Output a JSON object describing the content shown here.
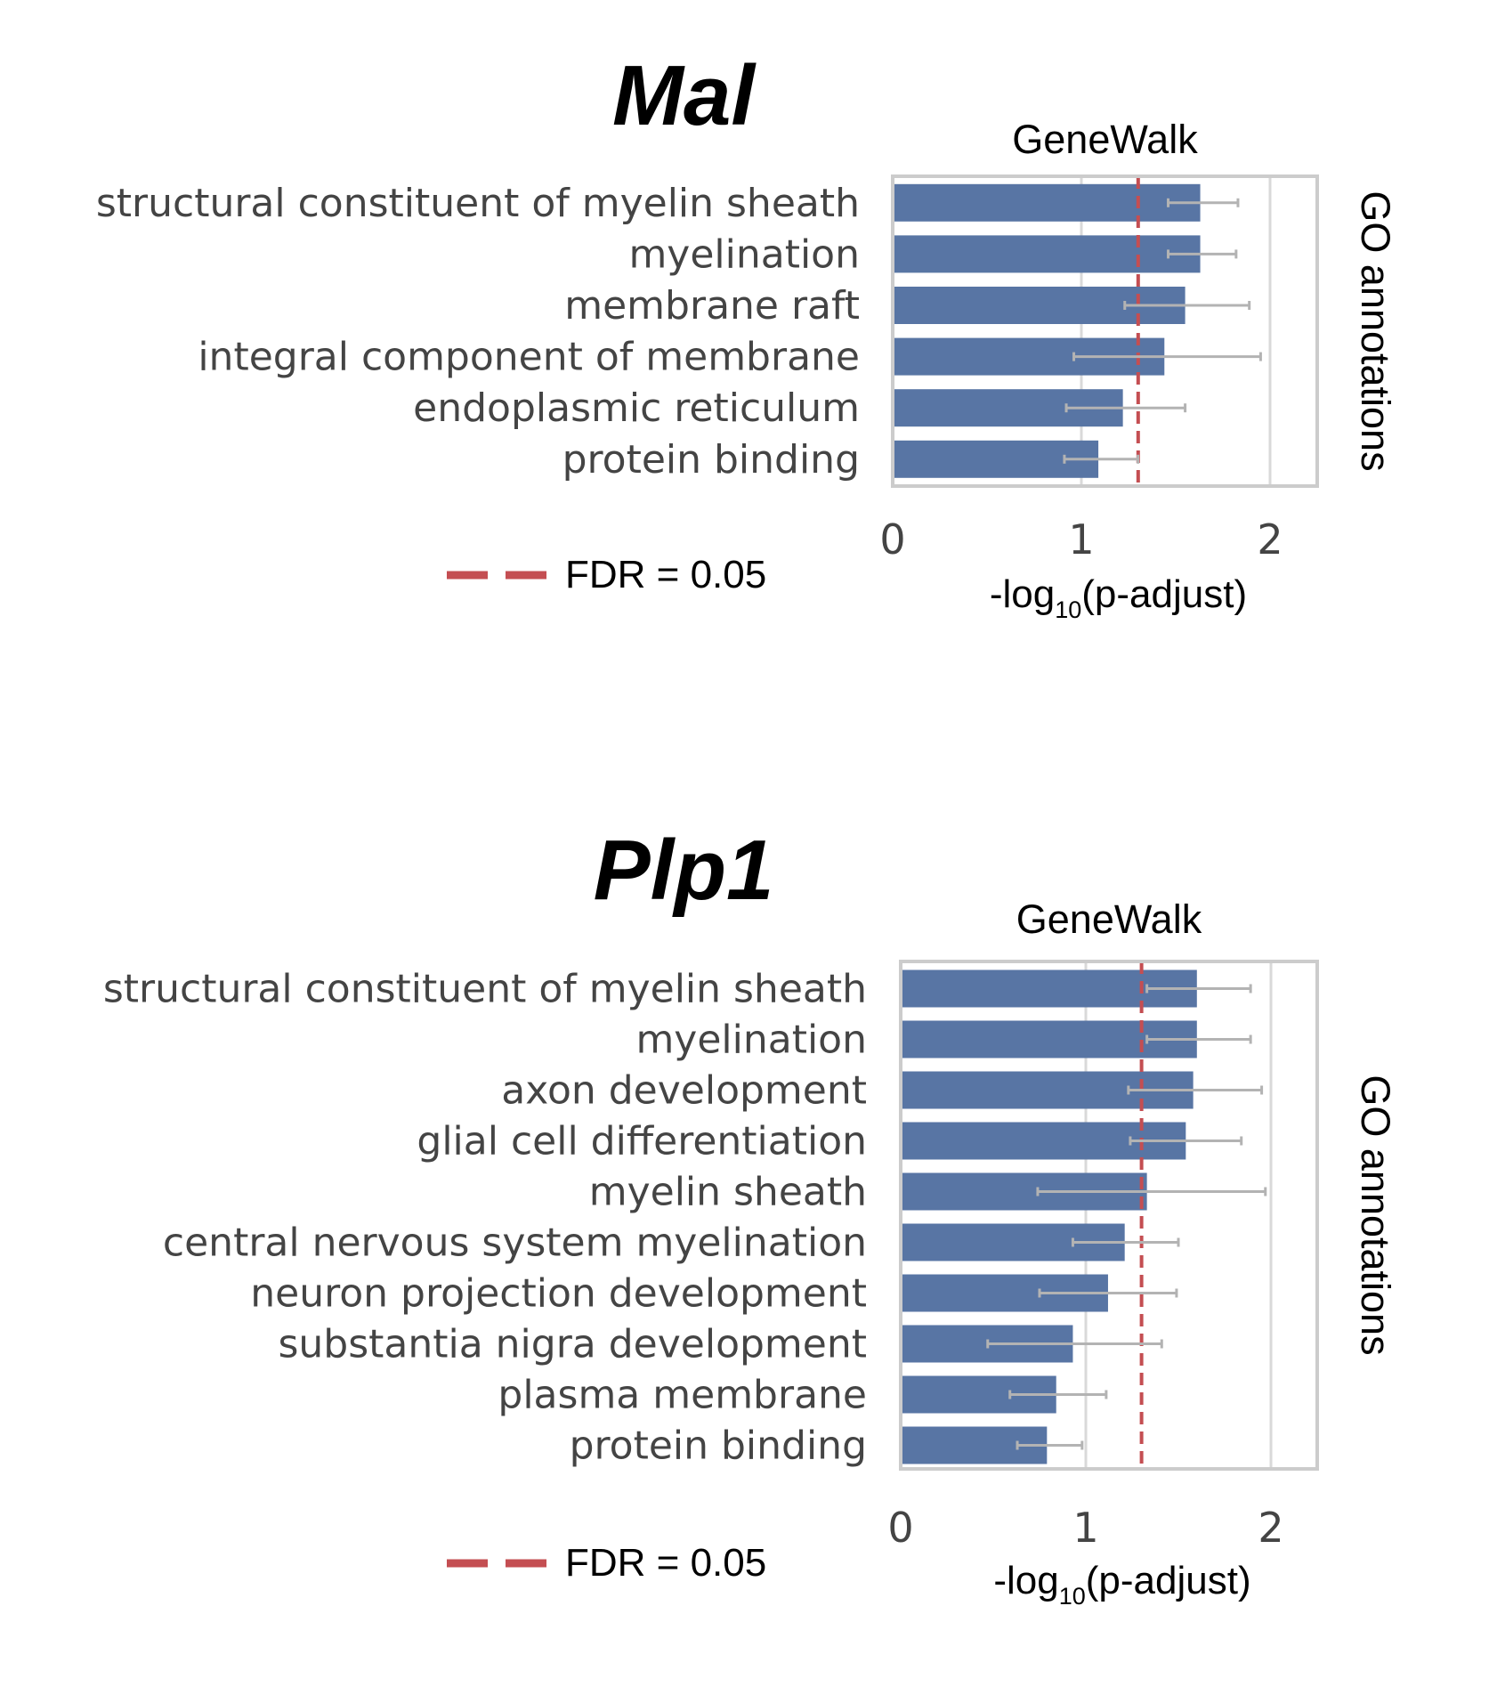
{
  "chart_data": [
    {
      "type": "bar",
      "orientation": "horizontal",
      "title": "Mal",
      "panel_label": "GeneWalk",
      "xlabel_prefix": "-log",
      "xlabel_sub": "10",
      "xlabel_suffix": "(p-adjust)",
      "ylabel": "GO annotations",
      "xlim": [
        0,
        2.25
      ],
      "xticks": [
        0,
        1,
        2
      ],
      "grid": "vertical",
      "threshold": {
        "value": 1.301,
        "label": "FDR = 0.05",
        "color": "#c44e52",
        "style": "dashed"
      },
      "bar_color": "#5875a4",
      "error_color": "#b3b3b3",
      "categories": [
        "structural constituent of myelin sheath",
        "myelination",
        "membrane raft",
        "integral component of membrane",
        "endoplasmic reticulum",
        "protein binding"
      ],
      "values": [
        1.63,
        1.63,
        1.55,
        1.44,
        1.22,
        1.09
      ],
      "error_low": [
        1.46,
        1.46,
        1.23,
        0.96,
        0.92,
        0.91
      ],
      "error_high": [
        1.83,
        1.82,
        1.89,
        1.95,
        1.55,
        1.3
      ]
    },
    {
      "type": "bar",
      "orientation": "horizontal",
      "title": "Plp1",
      "panel_label": "GeneWalk",
      "xlabel_prefix": "-log",
      "xlabel_sub": "10",
      "xlabel_suffix": "(p-adjust)",
      "ylabel": "GO annotations",
      "xlim": [
        0,
        2.25
      ],
      "xticks": [
        0,
        1,
        2
      ],
      "grid": "vertical",
      "threshold": {
        "value": 1.301,
        "label": "FDR = 0.05",
        "color": "#c44e52",
        "style": "dashed"
      },
      "bar_color": "#5875a4",
      "error_color": "#b3b3b3",
      "categories": [
        "structural constituent of myelin sheath",
        "myelination",
        "axon development",
        "glial cell differentiation",
        "myelin sheath",
        "central nervous system myelination",
        "neuron projection development",
        "substantia nigra development",
        "plasma membrane",
        "protein binding"
      ],
      "values": [
        1.6,
        1.6,
        1.58,
        1.54,
        1.33,
        1.21,
        1.12,
        0.93,
        0.84,
        0.79
      ],
      "error_low": [
        1.33,
        1.33,
        1.23,
        1.24,
        0.74,
        0.93,
        0.75,
        0.47,
        0.59,
        0.63
      ],
      "error_high": [
        1.89,
        1.89,
        1.95,
        1.84,
        1.97,
        1.5,
        1.49,
        1.41,
        1.11,
        0.98
      ]
    }
  ]
}
